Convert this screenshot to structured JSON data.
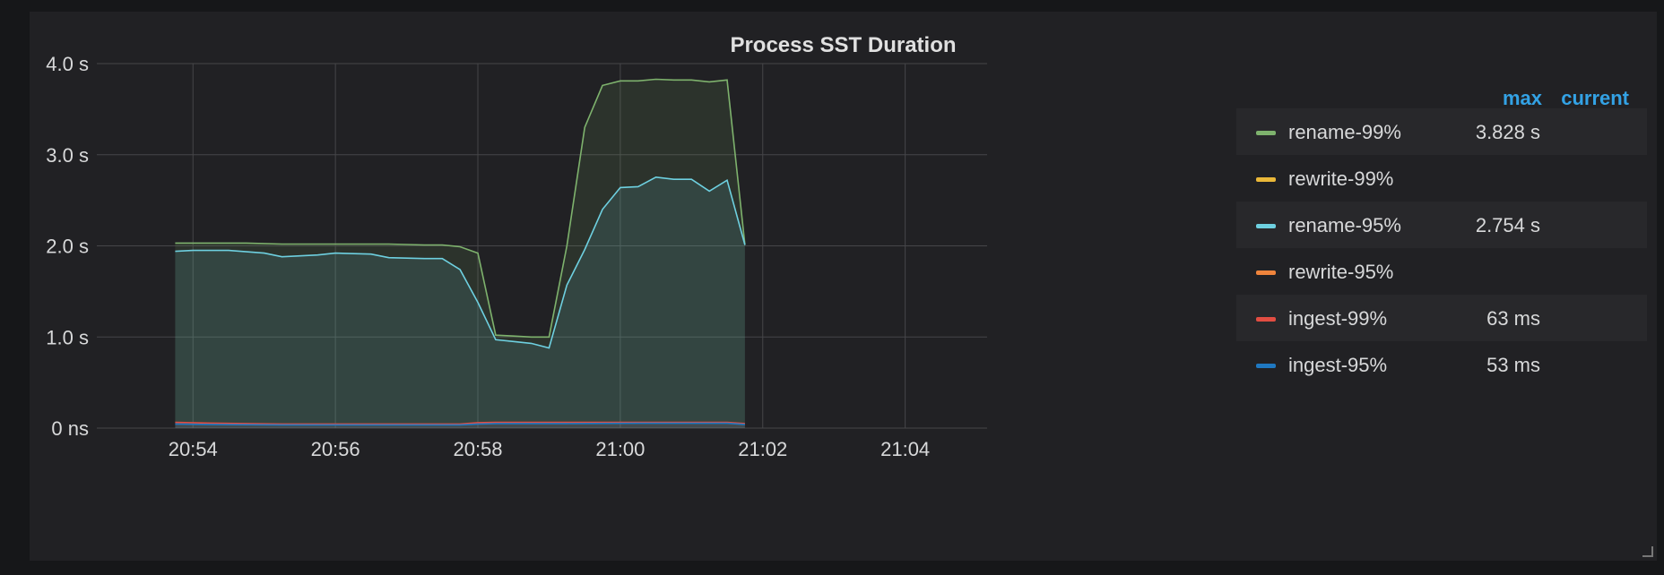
{
  "panel": {
    "title": "Process SST Duration"
  },
  "legend": {
    "header_max": "max",
    "header_current": "current",
    "items": [
      {
        "name": "rename-99%",
        "color": "#7eb26d",
        "max": "3.828 s",
        "current": ""
      },
      {
        "name": "rewrite-99%",
        "color": "#eab839",
        "max": "",
        "current": ""
      },
      {
        "name": "rename-95%",
        "color": "#6ed0e0",
        "max": "2.754 s",
        "current": ""
      },
      {
        "name": "rewrite-95%",
        "color": "#ef843c",
        "max": "",
        "current": ""
      },
      {
        "name": "ingest-99%",
        "color": "#e24d42",
        "max": "63 ms",
        "current": ""
      },
      {
        "name": "ingest-95%",
        "color": "#1f78c1",
        "max": "53 ms",
        "current": ""
      }
    ]
  },
  "chart_data": {
    "type": "area",
    "title": "Process SST Duration",
    "xlabel": "",
    "ylabel": "",
    "x_unit": "time (HH:MM)",
    "xlim": [
      "20:52:39",
      "21:05:09"
    ],
    "ylim": [
      0,
      4.0
    ],
    "y_ticks": [
      {
        "value": 0,
        "label": "0 ns"
      },
      {
        "value": 1.0,
        "label": "1.0 s"
      },
      {
        "value": 2.0,
        "label": "2.0 s"
      },
      {
        "value": 3.0,
        "label": "3.0 s"
      },
      {
        "value": 4.0,
        "label": "4.0 s"
      }
    ],
    "x_ticks": [
      "20:54",
      "20:56",
      "20:58",
      "21:00",
      "21:02",
      "21:04"
    ],
    "grid": true,
    "legend_position": "right",
    "series": [
      {
        "name": "rename-99%",
        "color": "#7eb26d",
        "points": [
          [
            "20:53:45",
            2.03
          ],
          [
            "20:54:15",
            2.03
          ],
          [
            "20:54:45",
            2.03
          ],
          [
            "20:55:15",
            2.02
          ],
          [
            "20:55:45",
            2.02
          ],
          [
            "20:56:15",
            2.02
          ],
          [
            "20:56:45",
            2.02
          ],
          [
            "20:57:15",
            2.01
          ],
          [
            "20:57:30",
            2.01
          ],
          [
            "20:57:45",
            1.99
          ],
          [
            "20:58:00",
            1.92
          ],
          [
            "20:58:15",
            1.02
          ],
          [
            "20:58:30",
            1.01
          ],
          [
            "20:58:45",
            1.0
          ],
          [
            "20:59:00",
            1.0
          ],
          [
            "20:59:15",
            2.0
          ],
          [
            "20:59:30",
            3.3
          ],
          [
            "20:59:45",
            3.76
          ],
          [
            "21:00:00",
            3.81
          ],
          [
            "21:00:15",
            3.81
          ],
          [
            "21:00:30",
            3.828
          ],
          [
            "21:00:45",
            3.82
          ],
          [
            "21:01:00",
            3.82
          ],
          [
            "21:01:15",
            3.8
          ],
          [
            "21:01:30",
            3.82
          ],
          [
            "21:01:45",
            2.01
          ]
        ]
      },
      {
        "name": "rename-95%",
        "color": "#6ed0e0",
        "points": [
          [
            "20:53:45",
            1.94
          ],
          [
            "20:54:00",
            1.95
          ],
          [
            "20:54:30",
            1.95
          ],
          [
            "20:55:00",
            1.92
          ],
          [
            "20:55:15",
            1.88
          ],
          [
            "20:55:45",
            1.9
          ],
          [
            "20:56:00",
            1.92
          ],
          [
            "20:56:30",
            1.91
          ],
          [
            "20:56:45",
            1.87
          ],
          [
            "20:57:15",
            1.86
          ],
          [
            "20:57:30",
            1.86
          ],
          [
            "20:57:45",
            1.74
          ],
          [
            "20:58:00",
            1.38
          ],
          [
            "20:58:15",
            0.97
          ],
          [
            "20:58:30",
            0.95
          ],
          [
            "20:58:45",
            0.93
          ],
          [
            "20:59:00",
            0.88
          ],
          [
            "20:59:15",
            1.57
          ],
          [
            "20:59:30",
            1.96
          ],
          [
            "20:59:45",
            2.4
          ],
          [
            "21:00:00",
            2.64
          ],
          [
            "21:00:15",
            2.65
          ],
          [
            "21:00:30",
            2.754
          ],
          [
            "21:00:45",
            2.73
          ],
          [
            "21:01:00",
            2.73
          ],
          [
            "21:01:15",
            2.6
          ],
          [
            "21:01:30",
            2.72
          ],
          [
            "21:01:45",
            2.01
          ]
        ]
      },
      {
        "name": "ingest-99%",
        "color": "#e24d42",
        "points": [
          [
            "20:53:45",
            0.063
          ],
          [
            "20:54:15",
            0.055
          ],
          [
            "20:55:15",
            0.045
          ],
          [
            "20:56:15",
            0.045
          ],
          [
            "20:57:15",
            0.045
          ],
          [
            "20:57:45",
            0.045
          ],
          [
            "20:58:00",
            0.06
          ],
          [
            "20:58:15",
            0.063
          ],
          [
            "20:59:15",
            0.063
          ],
          [
            "21:00:15",
            0.063
          ],
          [
            "21:01:30",
            0.063
          ],
          [
            "21:01:45",
            0.05
          ]
        ]
      },
      {
        "name": "ingest-95%",
        "color": "#1f78c1",
        "points": [
          [
            "20:53:45",
            0.045
          ],
          [
            "20:54:15",
            0.04
          ],
          [
            "20:55:15",
            0.035
          ],
          [
            "20:56:15",
            0.035
          ],
          [
            "20:57:15",
            0.035
          ],
          [
            "20:57:45",
            0.035
          ],
          [
            "20:58:00",
            0.045
          ],
          [
            "20:58:15",
            0.05
          ],
          [
            "20:59:15",
            0.05
          ],
          [
            "21:00:15",
            0.053
          ],
          [
            "21:01:30",
            0.053
          ],
          [
            "21:01:45",
            0.04
          ]
        ]
      }
    ]
  }
}
